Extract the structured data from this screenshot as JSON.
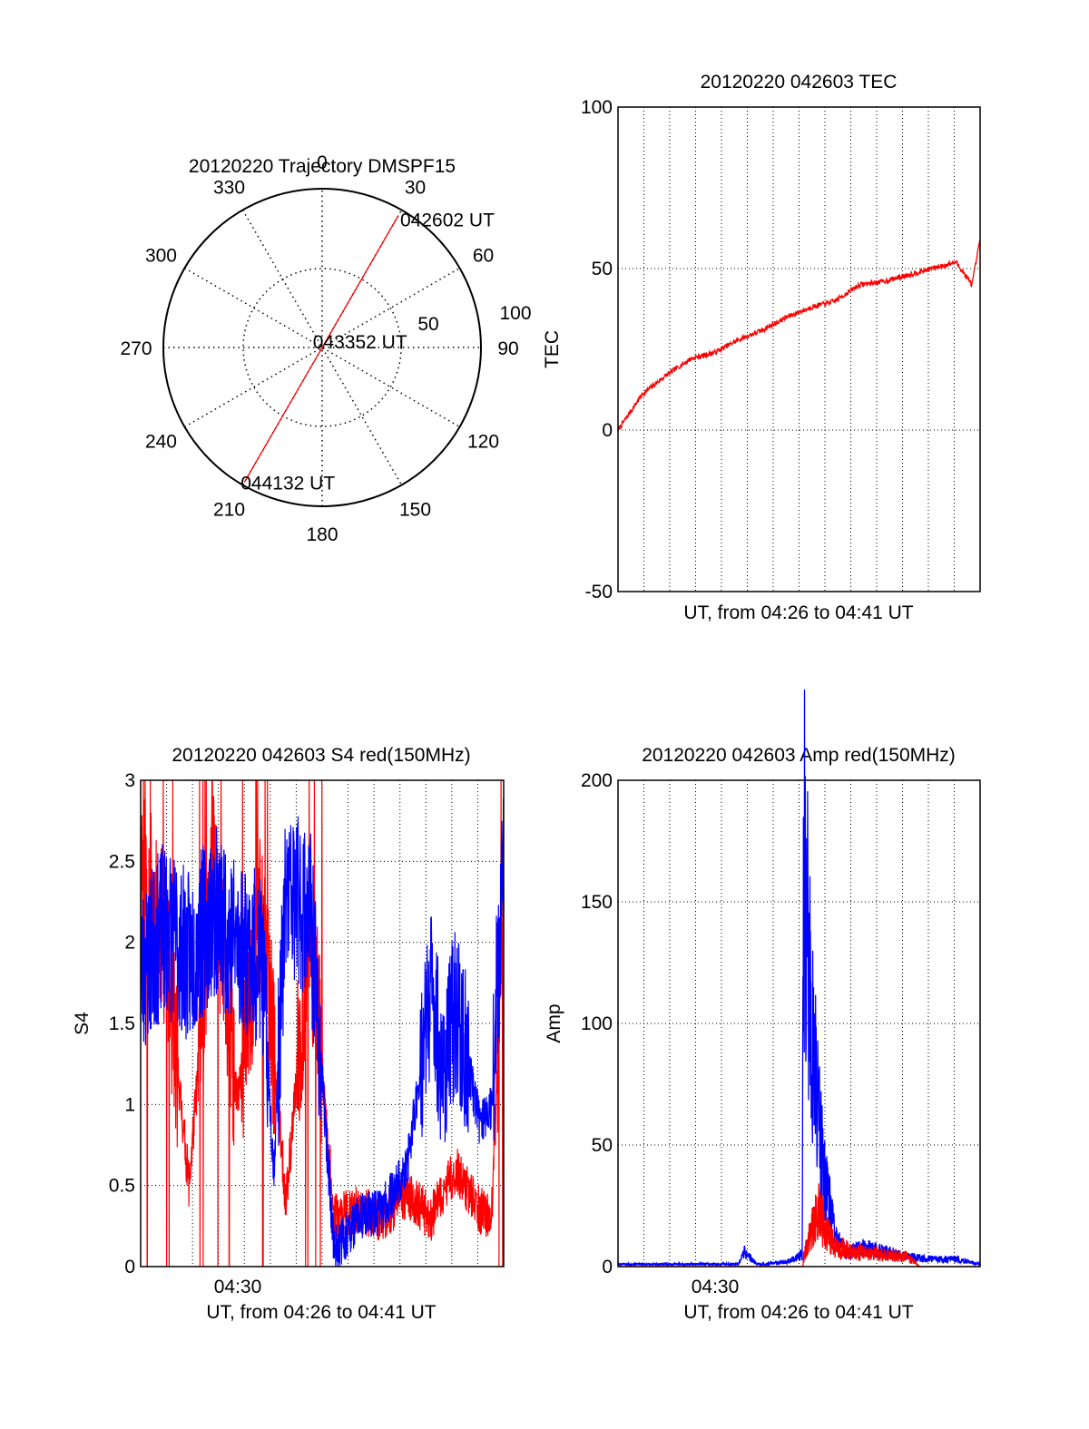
{
  "chart_data": [
    {
      "type": "polar",
      "title": "20120220 Trajectory DMSPF15",
      "azimuth_labels": [
        "0",
        "30",
        "60",
        "90",
        "120",
        "150",
        "180",
        "210",
        "240",
        "270",
        "300",
        "330"
      ],
      "radial_labels": [
        "50",
        "100"
      ],
      "rlim": [
        0,
        100
      ],
      "grid": true,
      "series": [
        {
          "color": "#ff0000",
          "points": [
            {
              "az": 30,
              "r": 96,
              "label": "042602 UT"
            },
            {
              "az": 30,
              "r": 2,
              "label": "043352 UT"
            },
            {
              "az": 210,
              "r": 98,
              "label": "044132 UT"
            }
          ]
        }
      ]
    },
    {
      "type": "line",
      "title": "20120220 042603 TEC",
      "xlabel": "UT, from 04:26 to 04:41 UT",
      "ylabel": "TEC",
      "xlim": [
        "04:26",
        "04:41"
      ],
      "ylim": [
        -50,
        100
      ],
      "yticks": [
        "100",
        "50",
        "0",
        "-50"
      ],
      "grid": true,
      "series": [
        {
          "color": "#ff0000",
          "x": [
            "04:26",
            "04:27",
            "04:28",
            "04:29",
            "04:30",
            "04:31",
            "04:32",
            "04:33",
            "04:34",
            "04:35",
            "04:36",
            "04:37",
            "04:38",
            "04:39",
            "04:40",
            "04:40:40",
            "04:41"
          ],
          "y": [
            0,
            11,
            17,
            22,
            24,
            28,
            31,
            35,
            38,
            40,
            45,
            46,
            48,
            50,
            52,
            45,
            59
          ]
        }
      ]
    },
    {
      "type": "line",
      "title": "20120220 042603 S4 red(150MHz)",
      "xlabel": "UT, from 04:26 to 04:41 UT",
      "ylabel": "S4",
      "xlim": [
        "04:26",
        "04:41"
      ],
      "ylim": [
        0,
        3
      ],
      "yticks": [
        "3",
        "2.5",
        "2",
        "1.5",
        "1",
        "0.5",
        "0"
      ],
      "xticks": [
        "04:30"
      ],
      "grid": true,
      "series": [
        {
          "color": "#0000ff",
          "x": [
            "04:26",
            "04:27",
            "04:28",
            "04:29",
            "04:30",
            "04:31",
            "04:31:30",
            "04:32",
            "04:33",
            "04:34",
            "04:35",
            "04:36",
            "04:37",
            "04:38",
            "04:38:30",
            "04:39",
            "04:40",
            "04:40:30",
            "04:41"
          ],
          "y": [
            1.8,
            2.1,
            1.9,
            2.2,
            2.0,
            1.9,
            0.6,
            2.3,
            2.2,
            0.1,
            0.3,
            0.35,
            0.6,
            1.7,
            1.2,
            1.6,
            0.9,
            1.0,
            2.6
          ]
        },
        {
          "color": "#ff0000",
          "x": [
            "04:26",
            "04:27",
            "04:28",
            "04:29",
            "04:30",
            "04:31",
            "04:32",
            "04:33",
            "04:34",
            "04:35",
            "04:36",
            "04:37",
            "04:38",
            "04:39",
            "04:40",
            "04:40:30",
            "04:41"
          ],
          "y": [
            2.5,
            2.0,
            0.5,
            2.4,
            1.0,
            2.2,
            0.4,
            2.1,
            0.3,
            0.35,
            0.3,
            0.45,
            0.3,
            0.6,
            0.35,
            0.3,
            2.2
          ]
        }
      ]
    },
    {
      "type": "line",
      "title": "20120220 042603 Amp red(150MHz)",
      "xlabel": "UT, from 04:26 to 04:41 UT",
      "ylabel": "Amp",
      "xlim": [
        "04:26",
        "04:41"
      ],
      "ylim": [
        0,
        200
      ],
      "yticks": [
        "200",
        "150",
        "100",
        "50",
        "0"
      ],
      "xticks": [
        "04:30"
      ],
      "grid": true,
      "series": [
        {
          "color": "#0000ff",
          "x": [
            "04:26",
            "04:28",
            "04:30",
            "04:31",
            "04:31:15",
            "04:31:45",
            "04:32",
            "04:33",
            "04:33:38",
            "04:33:40",
            "04:34",
            "04:34:30",
            "04:35",
            "04:35:30",
            "04:36",
            "04:37",
            "04:38",
            "04:39",
            "04:40",
            "04:41"
          ],
          "y": [
            1,
            1,
            1,
            1,
            6,
            1,
            1,
            2,
            5,
            172,
            100,
            40,
            12,
            5,
            8,
            6,
            4,
            3,
            3,
            1
          ]
        },
        {
          "color": "#ff0000",
          "x": [
            "04:33:40",
            "04:34",
            "04:34:20",
            "04:35",
            "04:36",
            "04:37",
            "04:38",
            "04:38:30"
          ],
          "y": [
            3,
            15,
            22,
            8,
            6,
            5,
            4,
            0
          ]
        }
      ]
    }
  ]
}
